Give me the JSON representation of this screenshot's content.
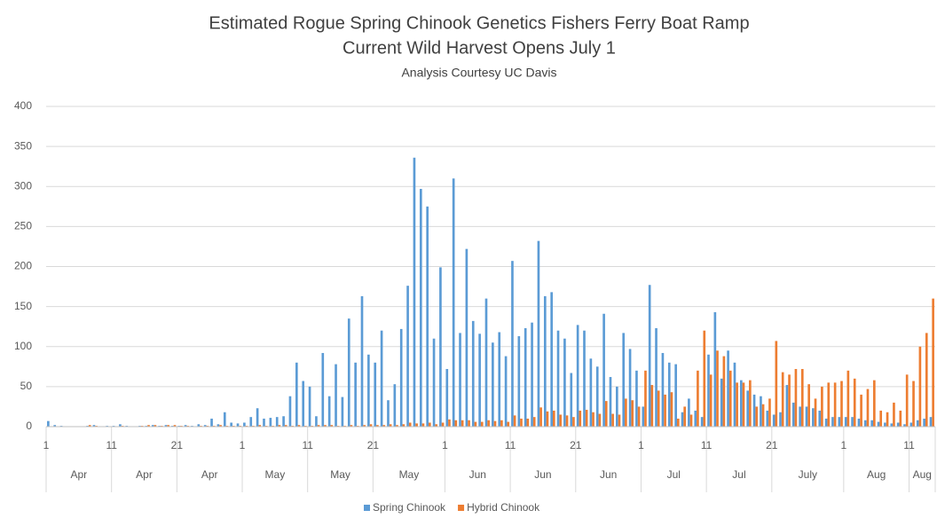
{
  "chart_data": {
    "type": "bar",
    "title": [
      "Estimated Rogue Spring Chinook Genetics Fishers Ferry Boat Ramp",
      "Current Wild Harvest Opens July 1"
    ],
    "subtitle": "Analysis Courtesy UC Davis",
    "categories": [
      "1",
      null,
      null,
      null,
      null,
      null,
      null,
      null,
      null,
      null,
      "11",
      null,
      null,
      null,
      null,
      null,
      null,
      null,
      null,
      null,
      "21",
      null,
      null,
      null,
      null,
      null,
      null,
      null,
      null,
      null,
      "1",
      null,
      null,
      null,
      null,
      null,
      null,
      null,
      null,
      null,
      "11",
      null,
      null,
      null,
      null,
      null,
      null,
      null,
      null,
      null,
      "21",
      null,
      null,
      null,
      null,
      null,
      null,
      null,
      null,
      null,
      null,
      "1",
      null,
      null,
      null,
      null,
      null,
      null,
      null,
      null,
      null,
      "11",
      null,
      null,
      null,
      null,
      null,
      null,
      null,
      null,
      null,
      "21",
      null,
      null,
      null,
      null,
      null,
      null,
      null,
      null,
      null,
      "1",
      null,
      null,
      null,
      null,
      null,
      null,
      null,
      null,
      null,
      "11",
      null,
      null,
      null,
      null,
      null,
      null,
      null,
      null,
      null,
      "21",
      null,
      null,
      null,
      null,
      null,
      null,
      null,
      null,
      null,
      null,
      "1",
      null,
      null,
      null,
      null,
      null,
      null,
      null,
      null,
      null,
      "11",
      null,
      null,
      null
    ],
    "month_labels": [
      "Apr",
      "Apr",
      "Apr",
      "May",
      "May",
      "May",
      "Jun",
      "Jun",
      "Jun",
      "Jul",
      "Jul",
      "July",
      "Aug",
      "Aug"
    ],
    "series": [
      {
        "name": "Spring Chinook",
        "color": "#5b9bd5",
        "values": [
          7,
          2,
          1,
          0,
          0,
          0,
          1,
          2,
          0,
          1,
          1,
          3,
          1,
          0,
          1,
          1,
          2,
          1,
          2,
          1,
          1,
          2,
          1,
          3,
          2,
          10,
          3,
          18,
          5,
          4,
          5,
          12,
          23,
          10,
          11,
          12,
          13,
          38,
          80,
          57,
          50,
          13,
          92,
          38,
          78,
          37,
          135,
          80,
          163,
          90,
          80,
          120,
          33,
          53,
          122,
          176,
          336,
          297,
          275,
          110,
          199,
          72,
          310,
          117,
          222,
          132,
          116,
          160,
          105,
          118,
          88,
          207,
          113,
          123,
          130,
          232,
          163,
          168,
          120,
          110,
          67,
          127,
          120,
          85,
          75,
          141,
          62,
          50,
          117,
          97,
          70,
          25,
          177,
          123,
          92,
          80,
          78,
          18,
          35,
          20,
          12,
          90,
          143,
          60,
          95,
          80,
          58,
          45,
          40,
          38,
          20,
          15,
          18,
          52,
          30,
          25,
          25,
          23,
          20,
          10,
          12,
          12,
          12,
          12,
          10,
          8,
          8,
          6,
          5,
          4,
          5,
          3,
          5,
          8,
          10,
          12
        ]
      },
      {
        "name": "Hybrid Chinook",
        "color": "#ed7d31",
        "values": [
          0,
          0,
          0,
          0,
          0,
          0,
          2,
          1,
          0,
          0,
          0,
          1,
          0,
          0,
          1,
          2,
          2,
          1,
          2,
          2,
          1,
          1,
          0,
          1,
          1,
          1,
          2,
          1,
          1,
          1,
          1,
          1,
          2,
          1,
          1,
          2,
          2,
          1,
          2,
          1,
          1,
          2,
          2,
          2,
          1,
          1,
          2,
          1,
          2,
          3,
          2,
          2,
          3,
          2,
          3,
          5,
          4,
          4,
          5,
          3,
          5,
          9,
          8,
          8,
          8,
          6,
          6,
          8,
          7,
          8,
          6,
          14,
          10,
          10,
          12,
          24,
          19,
          20,
          15,
          14,
          12,
          20,
          21,
          18,
          16,
          32,
          16,
          15,
          35,
          33,
          25,
          70,
          52,
          45,
          40,
          43,
          10,
          25,
          15,
          70,
          120,
          65,
          95,
          88,
          70,
          55,
          55,
          58,
          25,
          28,
          35,
          107,
          68,
          65,
          72,
          72,
          53,
          35,
          50,
          55,
          55,
          57,
          70,
          60,
          40,
          47,
          58,
          20,
          18,
          30,
          20,
          65,
          57,
          100,
          117,
          160
        ]
      }
    ],
    "ylim": [
      0,
      400
    ],
    "yticks": [
      0,
      50,
      100,
      150,
      200,
      250,
      300,
      350,
      400
    ],
    "grid": true,
    "legend": "bottom"
  }
}
